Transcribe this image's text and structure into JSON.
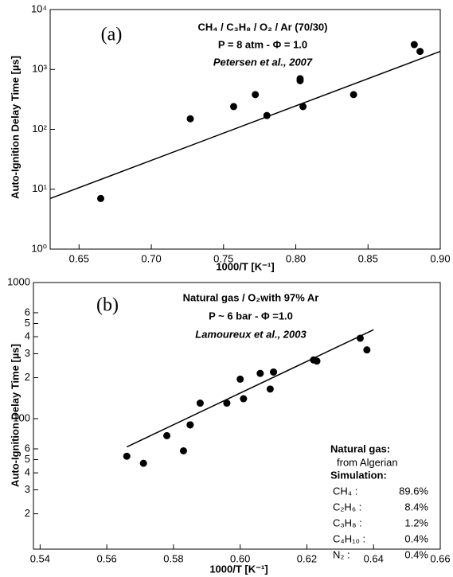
{
  "chart_data": [
    {
      "type": "scatter",
      "panel_label": "(a)",
      "title_lines": [
        "CH₄ / C₃H₈ / O₂ / Ar (70/30)",
        "P = 8 atm - Φ = 1.0",
        "Petersen et al., 2007"
      ],
      "xlabel": "1000/T [K⁻¹]",
      "ylabel": "Auto-Ignition Delay Time [µs]",
      "ylog": true,
      "color": "#000000",
      "xlim": [
        0.63,
        0.9
      ],
      "ylim": [
        1,
        10000
      ],
      "xticks": [
        0.65,
        {
          "value": 0.7,
          "label": "0.70"
        },
        0.75,
        {
          "value": 0.8,
          "label": "0.80"
        },
        0.85,
        {
          "value": 0.9,
          "label": "0.90"
        }
      ],
      "yticks": [
        {
          "value": 1,
          "label": "10⁰"
        },
        {
          "value": 10,
          "label": "10¹"
        },
        {
          "value": 100,
          "label": "10²"
        },
        {
          "value": 1000,
          "label": "10³"
        },
        {
          "value": 10000,
          "label": "10⁴"
        }
      ],
      "x": [
        0.665,
        0.727,
        0.757,
        0.772,
        0.78,
        0.803,
        0.803,
        0.805,
        0.84,
        0.882,
        0.886
      ],
      "values": [
        7,
        150,
        240,
        380,
        170,
        650,
        700,
        240,
        380,
        2600,
        2000
      ],
      "fit": {
        "x": [
          0.63,
          0.9
        ],
        "values": [
          7,
          2000
        ]
      }
    },
    {
      "type": "scatter",
      "panel_label": "(b)",
      "title_lines": [
        "Natural gas / O₂with 97% Ar",
        "P ~ 6 bar - Φ =1.0",
        "Lamoureux et al., 2003"
      ],
      "xlabel": "1000/T [K⁻¹]",
      "ylabel": "Auto-Ignition Delay Time  [µs]",
      "ylog": true,
      "color": "#000000",
      "xlim": [
        0.538,
        0.66
      ],
      "ylim": [
        11,
        1000
      ],
      "xticks": [
        0.54,
        0.56,
        0.58,
        {
          "value": 0.6,
          "label": "0.60"
        },
        0.62,
        0.64,
        0.66
      ],
      "yticks": [
        {
          "value": 20,
          "label": "2"
        },
        {
          "value": 30,
          "label": "3"
        },
        {
          "value": 40,
          "label": "4"
        },
        {
          "value": 50,
          "label": "5"
        },
        {
          "value": 60,
          "label": "6"
        },
        100,
        {
          "value": 200,
          "label": "2"
        },
        {
          "value": 300,
          "label": "3"
        },
        {
          "value": 400,
          "label": "4"
        },
        {
          "value": 500,
          "label": "5"
        },
        {
          "value": 600,
          "label": "6"
        },
        1000
      ],
      "x": [
        0.566,
        0.571,
        0.578,
        0.583,
        0.585,
        0.585,
        0.588,
        0.596,
        0.6,
        0.601,
        0.606,
        0.609,
        0.61,
        0.61,
        0.622,
        0.623,
        0.636,
        0.638
      ],
      "values": [
        53,
        47,
        75,
        58,
        90,
        90,
        130,
        130,
        195,
        140,
        215,
        165,
        220,
        220,
        270,
        265,
        390,
        320
      ],
      "fit": {
        "x": [
          0.566,
          0.64
        ],
        "values": [
          62,
          450
        ]
      },
      "inset": {
        "heading": "Natural gas:",
        "source": "from Algerian",
        "sim": "Simulation:",
        "rows": [
          [
            "CH₄ :",
            "89.6%"
          ],
          [
            "C₂H₆ :",
            "8.4%"
          ],
          [
            "C₃H₈ :",
            "1.2%"
          ],
          [
            "C₄H₁₀ :",
            "0.4%"
          ],
          [
            "N₂ :",
            "0.4%"
          ]
        ]
      }
    }
  ]
}
